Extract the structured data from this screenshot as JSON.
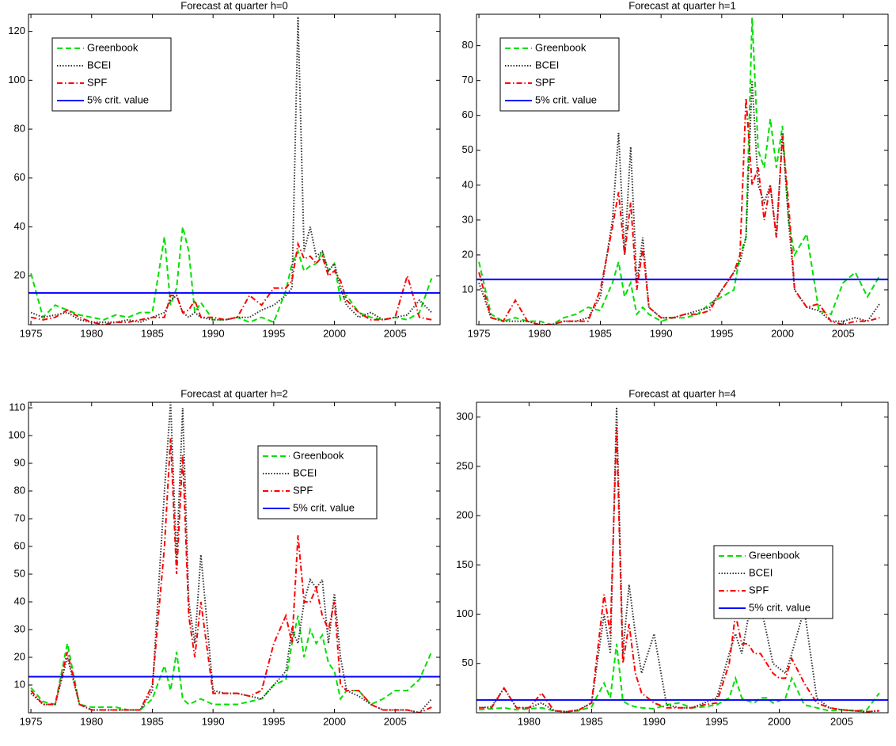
{
  "chart_data": [
    {
      "type": "line",
      "title": "Forecast at quarter h=0",
      "x": [
        1975,
        1976,
        1977,
        1978,
        1979,
        1980,
        1981,
        1982,
        1983,
        1984,
        1985,
        1986,
        1986.5,
        1987,
        1987.5,
        1988,
        1988.5,
        1989,
        1990,
        1991,
        1992,
        1993,
        1994,
        1995,
        1996,
        1996.5,
        1997,
        1997.5,
        1998,
        1998.5,
        1999,
        1999.5,
        2000,
        2000.5,
        2001,
        2002,
        2003,
        2004,
        2005,
        2006,
        2007,
        2008
      ],
      "series": [
        {
          "name": "Greenbook",
          "color": "#00e000",
          "linestyle": "dashed",
          "values": [
            21,
            3,
            8,
            6,
            4,
            3,
            2,
            4,
            3,
            5,
            5,
            36,
            8,
            15,
            40,
            30,
            5,
            9,
            2,
            2,
            3,
            1,
            3,
            1,
            14,
            25,
            30,
            22,
            24,
            25,
            30,
            22,
            25,
            10,
            12,
            5,
            3,
            2,
            3,
            2,
            5,
            19
          ]
        },
        {
          "name": "BCEI",
          "color": "#333333",
          "linestyle": "dotted",
          "values": [
            5,
            3,
            4,
            5,
            2,
            1,
            1,
            1,
            2,
            1,
            3,
            5,
            10,
            12,
            5,
            3,
            5,
            3,
            2,
            2,
            3,
            3,
            6,
            8,
            12,
            15,
            126,
            30,
            40,
            28,
            30,
            22,
            25,
            15,
            8,
            3,
            5,
            2,
            3,
            4,
            10,
            5
          ]
        },
        {
          "name": "SPF",
          "color": "#ff0000",
          "linestyle": "dashdot",
          "values": [
            3,
            2,
            3,
            6,
            3,
            1,
            0,
            1,
            1,
            2,
            3,
            3,
            12,
            12,
            5,
            6,
            10,
            3,
            3,
            2,
            3,
            12,
            8,
            15,
            15,
            18,
            33,
            27,
            28,
            25,
            28,
            20,
            22,
            18,
            10,
            5,
            2,
            2,
            3,
            20,
            3,
            2
          ]
        }
      ],
      "hline": {
        "name": "5% crit. value",
        "color": "#0000ff",
        "value": 13
      },
      "xlim": [
        1974.8,
        2008.7
      ],
      "xticks": [
        1975,
        1980,
        1985,
        1990,
        1995,
        2000,
        2005
      ],
      "ylim": [
        0,
        127
      ],
      "yticks": [
        20,
        40,
        60,
        80,
        100,
        120
      ],
      "legend": "upper left"
    },
    {
      "type": "line",
      "title": "Forecast at quarter h=1",
      "x": [
        1975,
        1976,
        1977,
        1978,
        1979,
        1980,
        1981,
        1982,
        1983,
        1984,
        1985,
        1986,
        1986.5,
        1987,
        1987.5,
        1988,
        1988.5,
        1989,
        1990,
        1991,
        1992,
        1993,
        1994,
        1995,
        1996,
        1996.5,
        1997,
        1997.5,
        1998,
        1998.5,
        1999,
        1999.5,
        2000,
        2000.5,
        2001,
        2002,
        2003,
        2004,
        2005,
        2006,
        2007,
        2008
      ],
      "series": [
        {
          "name": "Greenbook",
          "color": "#00e000",
          "linestyle": "dashed",
          "values": [
            18,
            3,
            1,
            2,
            1,
            1,
            0,
            2,
            3,
            5,
            4,
            12,
            18,
            8,
            12,
            3,
            5,
            3,
            1,
            2,
            2,
            3,
            6,
            8,
            10,
            20,
            25,
            88,
            50,
            45,
            59,
            45,
            57,
            30,
            20,
            26,
            4,
            3,
            12,
            15,
            8,
            14
          ]
        },
        {
          "name": "BCEI",
          "color": "#333333",
          "linestyle": "dotted",
          "values": [
            12,
            2,
            1,
            1,
            1,
            0,
            0,
            1,
            1,
            2,
            8,
            30,
            55,
            20,
            51,
            12,
            25,
            5,
            2,
            2,
            3,
            4,
            5,
            10,
            15,
            18,
            25,
            70,
            40,
            35,
            40,
            25,
            55,
            30,
            10,
            5,
            4,
            1,
            1,
            2,
            1,
            6
          ]
        },
        {
          "name": "SPF",
          "color": "#ff0000",
          "linestyle": "dashdot",
          "values": [
            15,
            2,
            1,
            7,
            1,
            0,
            0,
            1,
            1,
            1,
            10,
            28,
            38,
            20,
            35,
            10,
            22,
            5,
            2,
            2,
            3,
            3,
            4,
            10,
            15,
            20,
            65,
            40,
            45,
            30,
            40,
            25,
            54,
            35,
            10,
            5,
            6,
            1,
            0,
            1,
            1,
            2
          ]
        }
      ],
      "hline": {
        "name": "5% crit. value",
        "color": "#0000ff",
        "value": 13
      },
      "xlim": [
        1974.8,
        2008.7
      ],
      "xticks": [
        1975,
        1980,
        1985,
        1990,
        1995,
        2000,
        2005
      ],
      "ylim": [
        0,
        89
      ],
      "yticks": [
        10,
        20,
        30,
        40,
        50,
        60,
        70,
        80
      ],
      "legend": "upper left"
    },
    {
      "type": "line",
      "title": "Forecast at quarter h=2",
      "x": [
        1975,
        1976,
        1977,
        1978,
        1979,
        1980,
        1981,
        1982,
        1983,
        1984,
        1985,
        1986,
        1986.5,
        1987,
        1987.5,
        1988,
        1988.5,
        1989,
        1990,
        1991,
        1992,
        1993,
        1994,
        1995,
        1996,
        1996.5,
        1997,
        1997.5,
        1998,
        1998.5,
        1999,
        1999.5,
        2000,
        2000.5,
        2001,
        2002,
        2003,
        2004,
        2005,
        2006,
        2007,
        2008
      ],
      "series": [
        {
          "name": "Greenbook",
          "color": "#00e000",
          "linestyle": "dashed",
          "values": [
            9,
            4,
            3,
            25,
            3,
            2,
            2,
            2,
            1,
            1,
            5,
            17,
            8,
            22,
            5,
            3,
            4,
            5,
            3,
            3,
            3,
            4,
            5,
            10,
            12,
            25,
            35,
            20,
            30,
            25,
            28,
            18,
            15,
            5,
            8,
            8,
            3,
            5,
            8,
            8,
            12,
            22
          ]
        },
        {
          "name": "BCEI",
          "color": "#333333",
          "linestyle": "dotted",
          "values": [
            7,
            3,
            3,
            20,
            3,
            1,
            1,
            1,
            1,
            1,
            8,
            80,
            112,
            55,
            110,
            40,
            25,
            57,
            8,
            7,
            7,
            6,
            5,
            10,
            15,
            30,
            25,
            40,
            48,
            45,
            48,
            25,
            43,
            20,
            8,
            6,
            3,
            1,
            1,
            1,
            0,
            5
          ]
        },
        {
          "name": "SPF",
          "color": "#ff0000",
          "linestyle": "dashdot",
          "values": [
            8,
            3,
            3,
            22,
            3,
            1,
            1,
            1,
            1,
            1,
            10,
            60,
            99,
            50,
            93,
            35,
            20,
            40,
            7,
            7,
            7,
            6,
            8,
            25,
            35,
            25,
            64,
            40,
            40,
            45,
            35,
            30,
            40,
            10,
            8,
            8,
            3,
            1,
            1,
            1,
            0,
            2
          ]
        }
      ],
      "hline": {
        "name": "5% crit. value",
        "color": "#0000ff",
        "value": 13
      },
      "xlim": [
        1974.8,
        2008.7
      ],
      "xticks": [
        1975,
        1980,
        1985,
        1990,
        1995,
        2000,
        2005
      ],
      "ylim": [
        0,
        112
      ],
      "yticks": [
        10,
        20,
        30,
        40,
        50,
        60,
        70,
        80,
        90,
        100,
        110
      ],
      "legend": "upper right"
    },
    {
      "type": "line",
      "title": "Forecast at quarter h=4",
      "x": [
        1976,
        1977,
        1978,
        1979,
        1980,
        1981,
        1982,
        1983,
        1984,
        1985,
        1986,
        1986.5,
        1987,
        1987.5,
        1988,
        1988.5,
        1989,
        1990,
        1991,
        1992,
        1993,
        1994,
        1995,
        1996,
        1996.5,
        1997,
        1997.5,
        1998,
        1998.5,
        1999,
        1999.5,
        2000,
        2000.5,
        2001,
        2002,
        2003,
        2004,
        2005,
        2006,
        2007,
        2008
      ],
      "series": [
        {
          "name": "Greenbook",
          "color": "#00e000",
          "linestyle": "dashed",
          "values": [
            3,
            4,
            5,
            3,
            4,
            5,
            2,
            1,
            2,
            6,
            30,
            15,
            70,
            12,
            8,
            6,
            5,
            4,
            8,
            10,
            5,
            6,
            8,
            15,
            35,
            15,
            12,
            10,
            15,
            15,
            10,
            12,
            15,
            35,
            8,
            5,
            2,
            3,
            2,
            3,
            20
          ]
        },
        {
          "name": "BCEI",
          "color": "#333333",
          "linestyle": "dotted",
          "values": [
            5,
            6,
            25,
            5,
            5,
            10,
            2,
            1,
            3,
            10,
            100,
            60,
            310,
            60,
            130,
            80,
            40,
            80,
            8,
            5,
            5,
            10,
            15,
            60,
            80,
            60,
            95,
            100,
            110,
            80,
            50,
            45,
            40,
            60,
            105,
            15,
            5,
            3,
            2,
            1,
            2
          ]
        },
        {
          "name": "SPF",
          "color": "#ff0000",
          "linestyle": "dashdot",
          "values": [
            5,
            5,
            25,
            5,
            5,
            20,
            2,
            1,
            3,
            10,
            120,
            80,
            290,
            50,
            90,
            40,
            20,
            10,
            5,
            5,
            5,
            8,
            10,
            50,
            100,
            70,
            70,
            60,
            60,
            50,
            40,
            35,
            35,
            55,
            30,
            10,
            5,
            3,
            2,
            1,
            2
          ]
        }
      ],
      "hline": {
        "name": "5% crit. value",
        "color": "#0000ff",
        "value": 13
      },
      "xlim": [
        1975.8,
        2008.7
      ],
      "xticks": [
        1980,
        1985,
        1990,
        1995,
        2000,
        2005
      ],
      "ylim": [
        0,
        315
      ],
      "yticks": [
        50,
        100,
        150,
        200,
        250,
        300
      ],
      "legend": "center right"
    }
  ]
}
